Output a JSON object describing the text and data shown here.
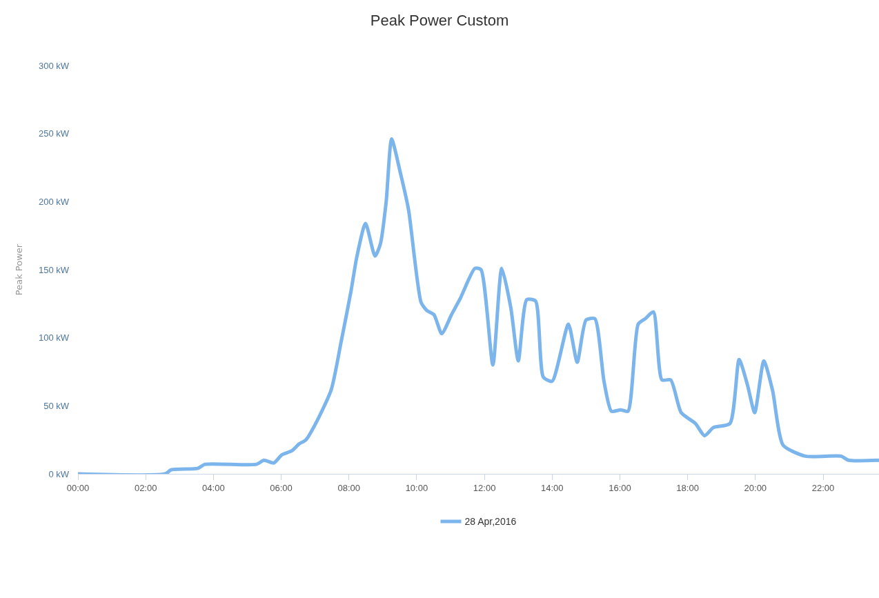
{
  "chart_data": {
    "type": "line",
    "title": "Peak Power Custom",
    "ylabel": "Peak Power",
    "x": [
      0,
      2.58,
      2.75,
      3.53,
      3.75,
      5.27,
      5.49,
      5.78,
      6.02,
      6.32,
      6.53,
      6.73,
      7.06,
      7.48,
      7.77,
      8.06,
      8.23,
      8.49,
      8.77,
      8.93,
      9.1,
      9.26,
      9.52,
      9.76,
      10.13,
      10.3,
      10.51,
      10.74,
      11.03,
      11.29,
      11.72,
      11.9,
      12.25,
      12.51,
      12.78,
      13.0,
      13.25,
      13.51,
      13.74,
      14.0,
      14.48,
      14.74,
      15.0,
      15.26,
      15.53,
      15.75,
      16.02,
      16.24,
      16.54,
      16.75,
      16.99,
      17.24,
      17.5,
      17.81,
      18.23,
      18.5,
      18.76,
      19.25,
      19.52,
      19.77,
      19.98,
      20.25,
      20.51,
      20.82,
      21.48,
      22.53,
      22.75,
      23.65
    ],
    "series": [
      {
        "name": "28 Apr,2016",
        "color": "#7cb5ec",
        "values": [
          0,
          0,
          3,
          4,
          7,
          7,
          10,
          8,
          14,
          17,
          22,
          25,
          39,
          62,
          97,
          134,
          159,
          184,
          160,
          169,
          200,
          246,
          221,
          194,
          126,
          120,
          117,
          103,
          117,
          129,
          151,
          150,
          80,
          151,
          122,
          83,
          128,
          127,
          71,
          68,
          110,
          82,
          113,
          114,
          68,
          46,
          47,
          46,
          110,
          114,
          119,
          69,
          69,
          45,
          37,
          28,
          34,
          37,
          84,
          65,
          45,
          83,
          61,
          21,
          13,
          13,
          10,
          10
        ]
      }
    ],
    "xlim": [
      0,
      23.65
    ],
    "xticks": [
      {
        "value": 0,
        "label": "00:00"
      },
      {
        "value": 2,
        "label": "02:00"
      },
      {
        "value": 4,
        "label": "04:00"
      },
      {
        "value": 6,
        "label": "06:00"
      },
      {
        "value": 8,
        "label": "08:00"
      },
      {
        "value": 10,
        "label": "10:00"
      },
      {
        "value": 12,
        "label": "12:00"
      },
      {
        "value": 14,
        "label": "14:00"
      },
      {
        "value": 16,
        "label": "16:00"
      },
      {
        "value": 18,
        "label": "18:00"
      },
      {
        "value": 20,
        "label": "20:00"
      },
      {
        "value": 22,
        "label": "22:00"
      }
    ],
    "ylim": [
      0,
      300
    ],
    "yticks": [
      {
        "value": 0,
        "label": "0 kW"
      },
      {
        "value": 50,
        "label": "50 kW"
      },
      {
        "value": 100,
        "label": "100 kW"
      },
      {
        "value": 150,
        "label": "150 kW"
      },
      {
        "value": 200,
        "label": "200 kW"
      },
      {
        "value": 250,
        "label": "250 kW"
      },
      {
        "value": 300,
        "label": "300 kW"
      }
    ],
    "legend": "bottom",
    "marker": "none",
    "line_style": "solid"
  }
}
